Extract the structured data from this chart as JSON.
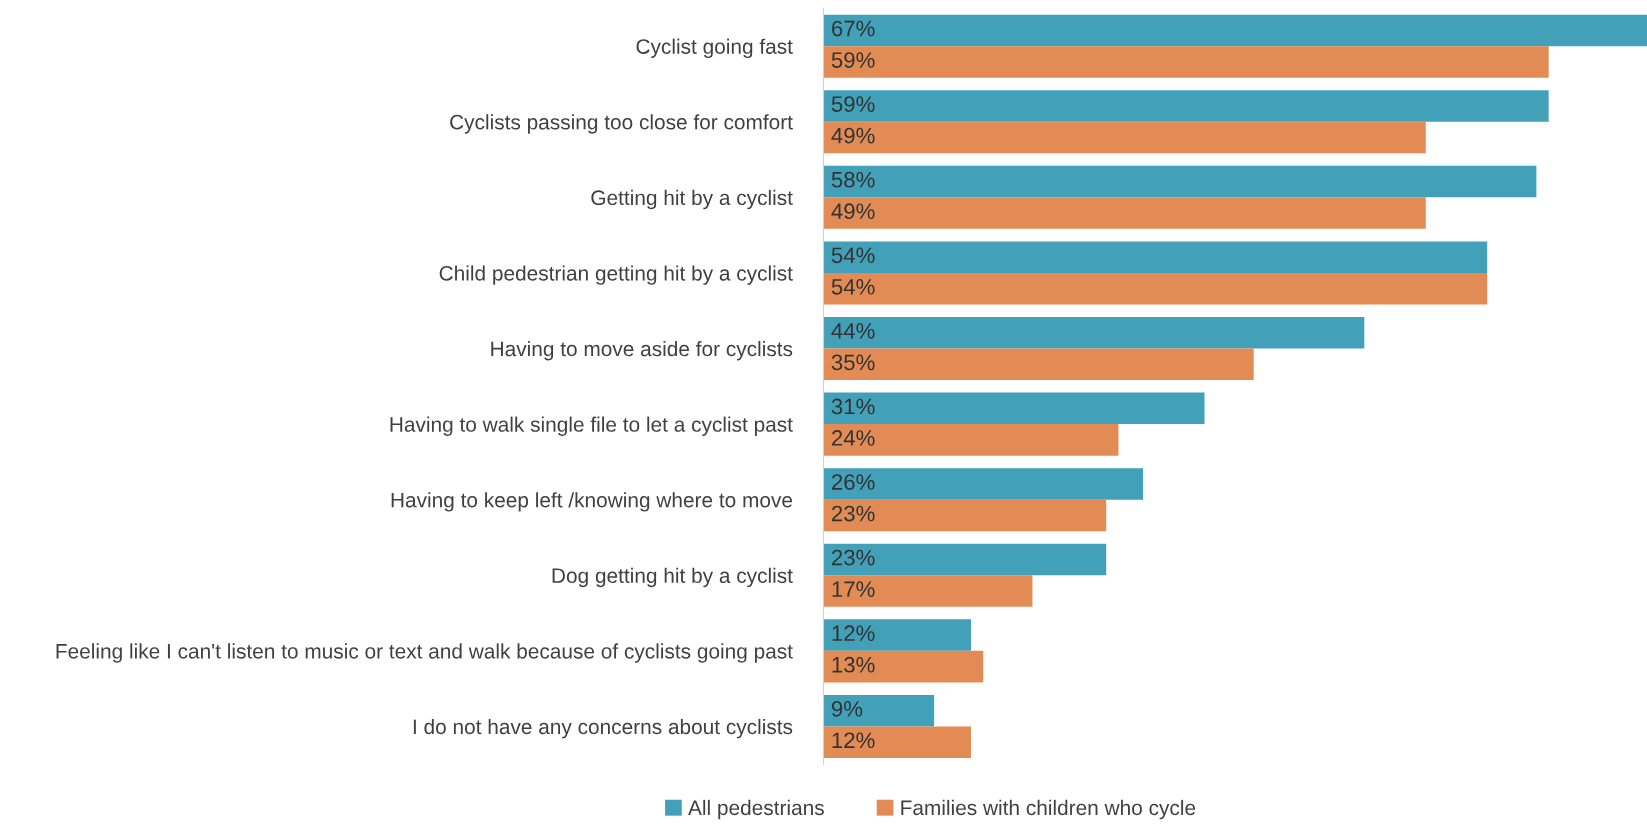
{
  "chart_data": {
    "type": "bar",
    "orientation": "horizontal",
    "categories": [
      "Cyclist going fast",
      "Cyclists passing too close for comfort",
      "Getting hit by a cyclist",
      "Child pedestrian getting hit by a cyclist",
      "Having to move aside for cyclists",
      "Having to walk single file to let a cyclist past",
      "Having to keep left /knowing where to move",
      "Dog getting hit by a cyclist",
      "Feeling like I can't listen to music or text and walk because of cyclists going past",
      "I do not have any concerns about cyclists"
    ],
    "series": [
      {
        "name": "All pedestrians",
        "color": "#42a0b9",
        "values": [
          67,
          59,
          58,
          54,
          44,
          31,
          26,
          23,
          12,
          9
        ],
        "value_labels": [
          "67%",
          "59%",
          "58%",
          "54%",
          "44%",
          "31%",
          "26%",
          "23%",
          "12%",
          "9%"
        ]
      },
      {
        "name": "Families with children who cycle",
        "color": "#e28b55",
        "values": [
          59,
          49,
          49,
          54,
          35,
          24,
          23,
          17,
          13,
          12
        ],
        "value_labels": [
          "59%",
          "49%",
          "49%",
          "54%",
          "35%",
          "24%",
          "23%",
          "17%",
          "13%",
          "12%"
        ]
      }
    ],
    "xlim": [
      0,
      67
    ],
    "tick_labels": "y",
    "grid": false,
    "legend": "bottom"
  }
}
